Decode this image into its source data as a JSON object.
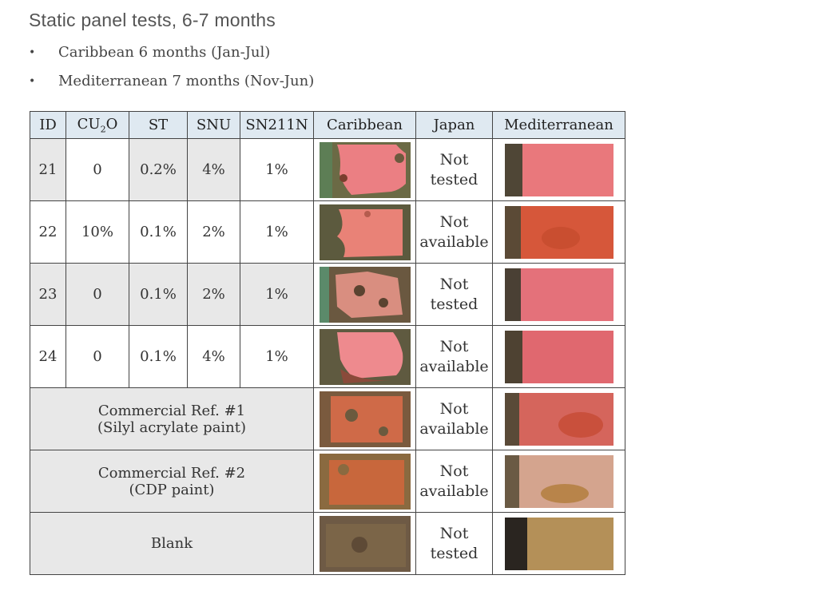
{
  "title": "Static panel tests, 6-7 months",
  "bullets": [
    "Caribbean 6 months (Jan-Jul)",
    "Mediterranean 7 months (Nov-Jun)"
  ],
  "headers": {
    "id": "ID",
    "cu2o_main": "CU",
    "cu2o_sub": "2",
    "cu2o_tail": "O",
    "st": "ST",
    "snu": "SNU",
    "sn211n": "SN211N",
    "caribbean": "Caribbean",
    "japan": "Japan",
    "mediterranean": "Mediterranean"
  },
  "rows": [
    {
      "id": "21",
      "cu2o": "0",
      "st": "0.2%",
      "snu": "4%",
      "sn211n": "1%",
      "japan": [
        "Not",
        "tested"
      ]
    },
    {
      "id": "22",
      "cu2o": "10%",
      "st": "0.1%",
      "snu": "2%",
      "sn211n": "1%",
      "japan": [
        "Not",
        "available"
      ]
    },
    {
      "id": "23",
      "cu2o": "0",
      "st": "0.1%",
      "snu": "2%",
      "sn211n": "1%",
      "japan": [
        "Not",
        "tested"
      ]
    },
    {
      "id": "24",
      "cu2o": "0",
      "st": "0.1%",
      "snu": "4%",
      "sn211n": "1%",
      "japan": [
        "Not",
        "available"
      ]
    }
  ],
  "refs": [
    {
      "line1": "Commercial Ref. #1",
      "line2": "(Silyl acrylate paint)",
      "japan": [
        "Not",
        "available"
      ]
    },
    {
      "line1": "Commercial Ref. #2",
      "line2": "(CDP paint)",
      "japan": [
        "Not",
        "available"
      ]
    },
    {
      "line1": "Blank",
      "line2": "",
      "japan": [
        "Not",
        "tested"
      ]
    }
  ],
  "colors": {
    "header_bg": "#dfe9f1",
    "cell_gray": "#e8e8e8",
    "pink_paint": "#e8777a",
    "orange_paint": "#d9603c",
    "fouling_brown": "#6b5a3e",
    "sand_tan": "#b49058"
  }
}
